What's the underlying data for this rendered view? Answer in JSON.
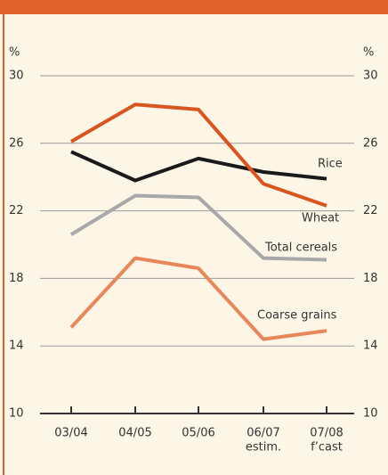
{
  "chart_data": {
    "type": "line",
    "categories": [
      [
        "03/04"
      ],
      [
        "04/05"
      ],
      [
        "05/06"
      ],
      [
        "06/07",
        "estim."
      ],
      [
        "07/08",
        "f’cast"
      ]
    ],
    "y_unit": "%",
    "y2_unit": "%",
    "ylim": [
      10,
      30
    ],
    "yticks": [
      10,
      14,
      18,
      22,
      26,
      30
    ],
    "y2lim": [
      10,
      30
    ],
    "y2ticks": [
      10,
      14,
      18,
      22,
      26,
      30
    ],
    "grid": true,
    "series": [
      {
        "name": "Rice",
        "color": "#1a1a1a",
        "values": [
          25.5,
          23.8,
          25.1,
          24.3,
          23.9
        ]
      },
      {
        "name": "Wheat",
        "color": "#d9541e",
        "values": [
          26.1,
          28.3,
          28.0,
          23.6,
          22.3
        ]
      },
      {
        "name": "Total cereals",
        "color": "#a8a8a8",
        "values": [
          20.6,
          22.9,
          22.8,
          19.2,
          19.1
        ]
      },
      {
        "name": "Coarse grains",
        "color": "#e8875a",
        "values": [
          15.1,
          19.2,
          18.6,
          14.4,
          14.9
        ]
      }
    ]
  }
}
